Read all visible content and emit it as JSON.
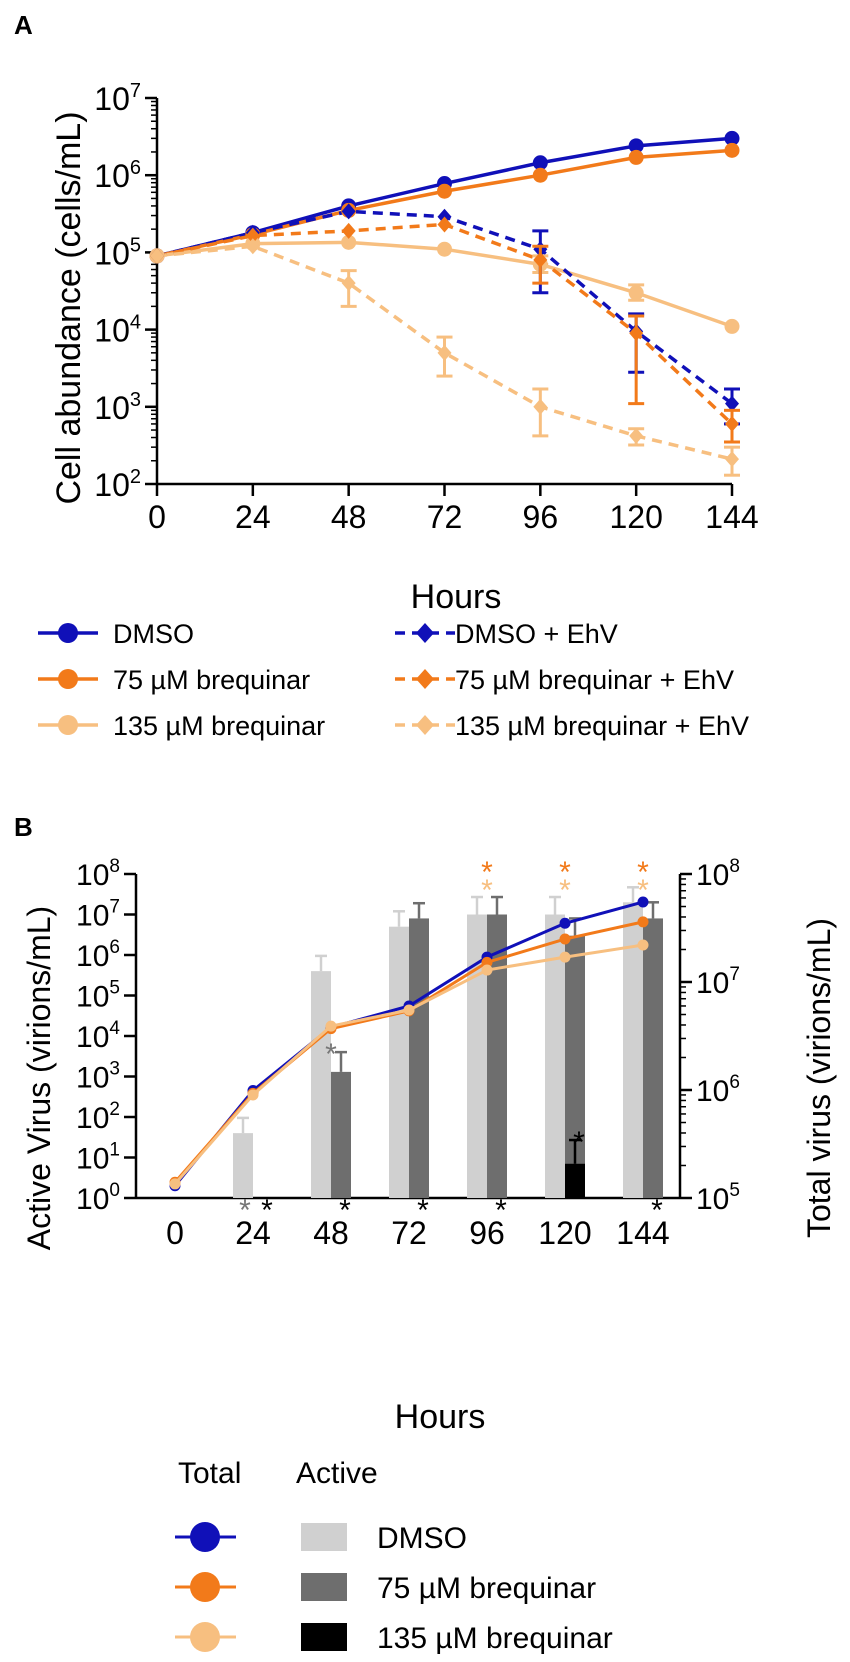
{
  "colors": {
    "dmso": "#1010b8",
    "bq75": "#f27a1a",
    "bq135": "#f7bf80",
    "bar_dmso": "#d0d0d0",
    "bar_bq75": "#6e6e6e",
    "bar_bq135": "#000000",
    "star_gray": "#777777"
  },
  "chart_data": [
    {
      "panel": "A",
      "type": "line",
      "scale": "log",
      "xlabel": "Hours",
      "ylabel": "Cell abundance (cells/mL)",
      "xlim": [
        0,
        144
      ],
      "ylim": [
        100,
        10000000
      ],
      "x_ticks": [
        "0",
        "24",
        "48",
        "72",
        "96",
        "120",
        "144"
      ],
      "y_ticks": [
        {
          "base": "10",
          "exp": "2"
        },
        {
          "base": "10",
          "exp": "3"
        },
        {
          "base": "10",
          "exp": "4"
        },
        {
          "base": "10",
          "exp": "5"
        },
        {
          "base": "10",
          "exp": "6"
        },
        {
          "base": "10",
          "exp": "7"
        }
      ],
      "x": [
        0,
        24,
        48,
        72,
        96,
        120,
        144
      ],
      "series": [
        {
          "name": "DMSO",
          "color_key": "dmso",
          "marker": "circle",
          "dashed": false,
          "values": [
            90000,
            180000,
            400000,
            780000,
            1450000,
            2400000,
            3000000
          ]
        },
        {
          "name": "75 µM brequinar",
          "color_key": "bq75",
          "marker": "circle",
          "dashed": false,
          "values": [
            90000,
            170000,
            350000,
            620000,
            1000000,
            1700000,
            2100000
          ]
        },
        {
          "name": "135 µM brequinar",
          "color_key": "bq135",
          "marker": "circle",
          "dashed": false,
          "values": [
            90000,
            130000,
            135000,
            110000,
            70000,
            30000,
            11000
          ],
          "err_high": [
            null,
            null,
            null,
            null,
            90000,
            38000,
            null
          ],
          "err_low": [
            null,
            null,
            null,
            null,
            55000,
            24000,
            null
          ]
        },
        {
          "name": "DMSO + EhV",
          "color_key": "dmso",
          "marker": "diamond",
          "dashed": true,
          "values": [
            90000,
            180000,
            340000,
            290000,
            110000,
            9500,
            1100
          ],
          "err_high": [
            null,
            null,
            null,
            null,
            190000,
            16000,
            1700
          ],
          "err_low": [
            null,
            null,
            null,
            null,
            30000,
            2800,
            600
          ]
        },
        {
          "name": "75 µM brequinar + EhV",
          "color_key": "bq75",
          "marker": "diamond",
          "dashed": true,
          "values": [
            90000,
            165000,
            190000,
            230000,
            80000,
            9000,
            600
          ],
          "err_high": [
            null,
            null,
            null,
            null,
            120000,
            15000,
            900
          ],
          "err_low": [
            null,
            null,
            null,
            null,
            40000,
            1100,
            350
          ]
        },
        {
          "name": "135 µM brequinar + EhV",
          "color_key": "bq135",
          "marker": "diamond",
          "dashed": true,
          "values": [
            90000,
            120000,
            40000,
            5000,
            1000,
            420,
            210
          ],
          "err_high": [
            null,
            null,
            58000,
            8000,
            1700,
            520,
            300
          ],
          "err_low": [
            null,
            null,
            20000,
            2500,
            420,
            320,
            130
          ]
        }
      ]
    },
    {
      "panel": "B",
      "type": "bar+line",
      "scale": "log",
      "xlabel": "Hours",
      "ylabel_left": "Active Virus (virions/mL)",
      "ylabel_right": "Total virus  (virions/mL)",
      "x_ticks": [
        "0",
        "24",
        "48",
        "72",
        "96",
        "120",
        "144"
      ],
      "ylim_left": [
        1,
        100000000
      ],
      "ylim_right": [
        100000,
        100000000
      ],
      "y_ticks_left": [
        {
          "base": "10",
          "exp": "0"
        },
        {
          "base": "10",
          "exp": "1"
        },
        {
          "base": "10",
          "exp": "2"
        },
        {
          "base": "10",
          "exp": "3"
        },
        {
          "base": "10",
          "exp": "4"
        },
        {
          "base": "10",
          "exp": "5"
        },
        {
          "base": "10",
          "exp": "6"
        },
        {
          "base": "10",
          "exp": "7"
        },
        {
          "base": "10",
          "exp": "8"
        }
      ],
      "y_ticks_right": [
        {
          "base": "10",
          "exp": "5"
        },
        {
          "base": "10",
          "exp": "6"
        },
        {
          "base": "10",
          "exp": "7"
        },
        {
          "base": "10",
          "exp": "8"
        }
      ],
      "x": [
        0,
        24,
        48,
        72,
        96,
        120,
        144
      ],
      "bars_active": [
        {
          "name": "DMSO",
          "color_key": "bar_dmso",
          "values": [
            null,
            40,
            400000,
            5000000,
            10000000,
            10000000,
            20000000
          ],
          "err_high": [
            null,
            95,
            950000,
            12000000,
            27000000,
            27000000,
            47000000
          ]
        },
        {
          "name": "75 µM brequinar",
          "color_key": "bar_bq75",
          "values": [
            null,
            null,
            1300,
            8000000,
            10000000,
            3000000,
            8000000
          ],
          "err_high": [
            null,
            null,
            4000,
            19000000,
            27000000,
            8000000,
            20000000
          ]
        },
        {
          "name": "135 µM brequinar",
          "color_key": "bar_bq135",
          "values": [
            null,
            null,
            null,
            null,
            null,
            7,
            null
          ],
          "err_high": [
            null,
            null,
            null,
            null,
            null,
            27,
            null
          ]
        }
      ],
      "lines_total": [
        {
          "name": "DMSO",
          "color_key": "dmso",
          "values": [
            130000,
            990000,
            3800000,
            6000000,
            17000000,
            35000000,
            55000000
          ]
        },
        {
          "name": "75 µM brequinar",
          "color_key": "bq75",
          "values": [
            140000,
            930000,
            3700000,
            5400000,
            15200000,
            25000000,
            36000000
          ]
        },
        {
          "name": "135 µM brequinar",
          "color_key": "bq135",
          "values": [
            135000,
            900000,
            3900000,
            5500000,
            12900000,
            17000000,
            22000000
          ]
        }
      ],
      "annotations": [
        {
          "text": "*",
          "x": 24,
          "offset": "left",
          "color_key": "star_gray",
          "at": "base"
        },
        {
          "text": "*",
          "x": 24,
          "offset": "right",
          "color_key": "bar_bq135",
          "at": "base"
        },
        {
          "text": "*",
          "x": 48,
          "offset": "center",
          "color_key": "star_gray",
          "at": "above",
          "value": 4000
        },
        {
          "text": "*",
          "x": 48,
          "offset": "right",
          "color_key": "bar_bq135",
          "at": "base"
        },
        {
          "text": "*",
          "x": 72,
          "offset": "right",
          "color_key": "bar_bq135",
          "at": "base"
        },
        {
          "text": "*",
          "x": 96,
          "offset": "right",
          "color_key": "bar_bq135",
          "at": "base"
        },
        {
          "text": "*",
          "x": 120,
          "offset": "right",
          "color_key": "bar_bq135",
          "at": "above",
          "value": 27
        },
        {
          "text": "*",
          "x": 144,
          "offset": "right",
          "color_key": "bar_bq135",
          "at": "base"
        },
        {
          "text": "*",
          "x": 96,
          "offset": "center",
          "color_key": "bq75",
          "at": "top1"
        },
        {
          "text": "*",
          "x": 96,
          "offset": "center",
          "color_key": "bq135",
          "at": "top2"
        },
        {
          "text": "*",
          "x": 120,
          "offset": "center",
          "color_key": "bq75",
          "at": "top1"
        },
        {
          "text": "*",
          "x": 120,
          "offset": "center",
          "color_key": "bq135",
          "at": "top2"
        },
        {
          "text": "*",
          "x": 144,
          "offset": "center",
          "color_key": "bq75",
          "at": "top1"
        },
        {
          "text": "*",
          "x": 144,
          "offset": "center",
          "color_key": "bq135",
          "at": "top2"
        }
      ]
    }
  ],
  "panel_a": {
    "label": "A",
    "legend": [
      {
        "text": "DMSO",
        "color_key": "dmso",
        "marker": "circle",
        "dashed": false
      },
      {
        "text": "75 µM brequinar",
        "color_key": "bq75",
        "marker": "circle",
        "dashed": false
      },
      {
        "text": "135 µM brequinar",
        "color_key": "bq135",
        "marker": "circle",
        "dashed": false
      },
      {
        "text": "DMSO + EhV",
        "color_key": "dmso",
        "marker": "diamond",
        "dashed": true
      },
      {
        "text": "75 µM brequinar + EhV",
        "color_key": "bq75",
        "marker": "diamond",
        "dashed": true
      },
      {
        "text": "135 µM brequinar + EhV",
        "color_key": "bq135",
        "marker": "diamond",
        "dashed": true
      }
    ]
  },
  "panel_b": {
    "label": "B",
    "legend_header_total": "Total",
    "legend_header_active": "Active",
    "legend": [
      {
        "text": "DMSO",
        "line_color_key": "dmso",
        "bar_color_key": "bar_dmso"
      },
      {
        "text": "75 µM brequinar",
        "line_color_key": "bq75",
        "bar_color_key": "bar_bq75"
      },
      {
        "text": "135 µM brequinar",
        "line_color_key": "bq135",
        "bar_color_key": "bar_bq135"
      }
    ]
  }
}
